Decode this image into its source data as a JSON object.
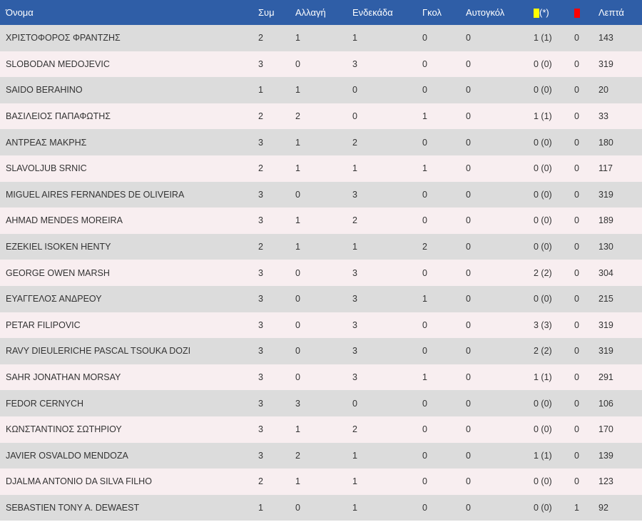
{
  "headers": {
    "name": "Όνομα",
    "apps": "Συμ",
    "subs": "Αλλαγή",
    "starts": "Ενδεκάδα",
    "goals": "Γκολ",
    "own_goals": "Αυτογκόλ",
    "yellow_suffix": "(*)",
    "minutes": "Λεπτά"
  },
  "colors": {
    "header_bg": "#2f5ea7",
    "row_odd": "#dcdcdc",
    "row_even": "#f8eef0",
    "yellow_card": "#ffff00",
    "red_card": "#ff0000"
  },
  "players": [
    {
      "name": "ΧΡΙΣΤΟΦΟΡΟΣ ΦΡΑΝΤΖΗΣ",
      "apps": "2",
      "subs": "1",
      "starts": "1",
      "goals": "0",
      "own_goals": "0",
      "yellow": "1 (1)",
      "red": "0",
      "minutes": "143"
    },
    {
      "name": "SLOBODAN MEDOJEVIC",
      "apps": "3",
      "subs": "0",
      "starts": "3",
      "goals": "0",
      "own_goals": "0",
      "yellow": "0 (0)",
      "red": "0",
      "minutes": "319"
    },
    {
      "name": "SAIDO BERAHINO",
      "apps": "1",
      "subs": "1",
      "starts": "0",
      "goals": "0",
      "own_goals": "0",
      "yellow": "0 (0)",
      "red": "0",
      "minutes": "20"
    },
    {
      "name": "ΒΑΣΙΛΕΙΟΣ ΠΑΠΑΦΩΤΗΣ",
      "apps": "2",
      "subs": "2",
      "starts": "0",
      "goals": "1",
      "own_goals": "0",
      "yellow": "1 (1)",
      "red": "0",
      "minutes": "33"
    },
    {
      "name": "ΑΝΤΡΕΑΣ ΜΑΚΡΗΣ",
      "apps": "3",
      "subs": "1",
      "starts": "2",
      "goals": "0",
      "own_goals": "0",
      "yellow": "0 (0)",
      "red": "0",
      "minutes": "180"
    },
    {
      "name": "SLAVOLJUB SRNIC",
      "apps": "2",
      "subs": "1",
      "starts": "1",
      "goals": "1",
      "own_goals": "0",
      "yellow": "0 (0)",
      "red": "0",
      "minutes": "117"
    },
    {
      "name": "MIGUEL AIRES FERNANDES DE OLIVEIRA",
      "apps": "3",
      "subs": "0",
      "starts": "3",
      "goals": "0",
      "own_goals": "0",
      "yellow": "0 (0)",
      "red": "0",
      "minutes": "319"
    },
    {
      "name": "AHMAD MENDES MOREIRA",
      "apps": "3",
      "subs": "1",
      "starts": "2",
      "goals": "0",
      "own_goals": "0",
      "yellow": "0 (0)",
      "red": "0",
      "minutes": "189"
    },
    {
      "name": "EZEKIEL ISOKEN HENTY",
      "apps": "2",
      "subs": "1",
      "starts": "1",
      "goals": "2",
      "own_goals": "0",
      "yellow": "0 (0)",
      "red": "0",
      "minutes": "130"
    },
    {
      "name": "GEORGE OWEN MARSH",
      "apps": "3",
      "subs": "0",
      "starts": "3",
      "goals": "0",
      "own_goals": "0",
      "yellow": "2 (2)",
      "red": "0",
      "minutes": "304"
    },
    {
      "name": "ΕΥΑΓΓΕΛΟΣ ΑΝΔΡΕΟΥ",
      "apps": "3",
      "subs": "0",
      "starts": "3",
      "goals": "1",
      "own_goals": "0",
      "yellow": "0 (0)",
      "red": "0",
      "minutes": "215"
    },
    {
      "name": "PETAR FILIPOVIC",
      "apps": "3",
      "subs": "0",
      "starts": "3",
      "goals": "0",
      "own_goals": "0",
      "yellow": "3 (3)",
      "red": "0",
      "minutes": "319"
    },
    {
      "name": "RAVY DIEULERICHE PASCAL TSOUKA DOZI",
      "apps": "3",
      "subs": "0",
      "starts": "3",
      "goals": "0",
      "own_goals": "0",
      "yellow": "2 (2)",
      "red": "0",
      "minutes": "319"
    },
    {
      "name": "SAHR JONATHAN MORSAY",
      "apps": "3",
      "subs": "0",
      "starts": "3",
      "goals": "1",
      "own_goals": "0",
      "yellow": "1 (1)",
      "red": "0",
      "minutes": "291"
    },
    {
      "name": "FEDOR CERNYCH",
      "apps": "3",
      "subs": "3",
      "starts": "0",
      "goals": "0",
      "own_goals": "0",
      "yellow": "0 (0)",
      "red": "0",
      "minutes": "106"
    },
    {
      "name": "ΚΩΝΣΤΑΝΤΙΝΟΣ ΣΩΤΗΡΙΟΥ",
      "apps": "3",
      "subs": "1",
      "starts": "2",
      "goals": "0",
      "own_goals": "0",
      "yellow": "0 (0)",
      "red": "0",
      "minutes": "170"
    },
    {
      "name": "JAVIER OSVALDO MENDOZA",
      "apps": "3",
      "subs": "2",
      "starts": "1",
      "goals": "0",
      "own_goals": "0",
      "yellow": "1 (1)",
      "red": "0",
      "minutes": "139"
    },
    {
      "name": "DJALMA ANTONIO DA SILVA FILHO",
      "apps": "2",
      "subs": "1",
      "starts": "1",
      "goals": "0",
      "own_goals": "0",
      "yellow": "0 (0)",
      "red": "0",
      "minutes": "123"
    },
    {
      "name": "SEBASTIEN TONY A. DEWAEST",
      "apps": "1",
      "subs": "0",
      "starts": "1",
      "goals": "0",
      "own_goals": "0",
      "yellow": "0 (0)",
      "red": "1",
      "minutes": "92"
    }
  ]
}
